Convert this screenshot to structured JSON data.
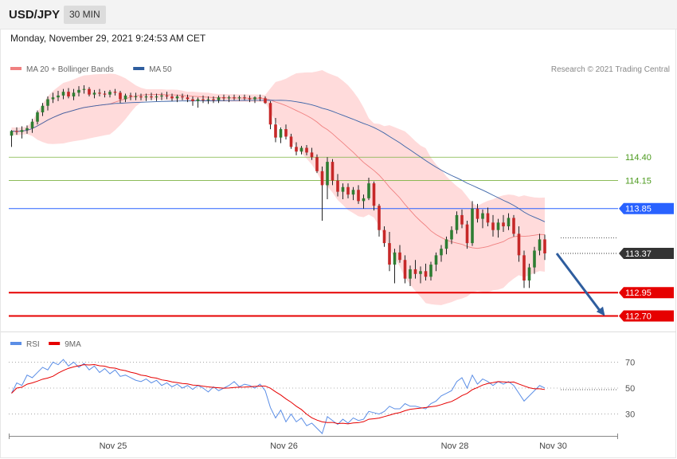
{
  "header": {
    "symbol": "USD/JPY",
    "interval": "30 MIN",
    "timestamp": "Monday, November 29, 2021 9:24:53 AM CET"
  },
  "chart_data": {
    "type": "candlestick",
    "instrument": "USD/JPY",
    "timeframe": "30 MIN",
    "attribution": "Research © 2021 Trading Central",
    "price_legend": [
      {
        "label": "MA 20 + Bollinger Bands",
        "color": "#f08080"
      },
      {
        "label": "MA 50",
        "color": "#2e5d9e"
      }
    ],
    "price_ylim": [
      112.5,
      115.4
    ],
    "x_ticks": [
      {
        "label": "Nov 25",
        "index": 19
      },
      {
        "label": "Nov 26",
        "index": 52
      },
      {
        "label": "Nov 28",
        "index": 85
      },
      {
        "label": "Nov 30",
        "index": 104
      }
    ],
    "levels": [
      {
        "price": 114.4,
        "label": "114.40",
        "style": "thin",
        "color": "#7cb342",
        "text_color": "#4c9a1e"
      },
      {
        "price": 114.15,
        "label": "114.15",
        "style": "thin",
        "color": "#7cb342",
        "text_color": "#4c9a1e"
      },
      {
        "price": 113.85,
        "label": "113.85",
        "style": "tag",
        "color": "#2962ff",
        "text_color": "#ffffff"
      },
      {
        "price": 113.37,
        "label": "113.37",
        "style": "current",
        "color": "#333333",
        "text_color": "#ffffff"
      },
      {
        "price": 112.95,
        "label": "112.95",
        "style": "tag",
        "color": "#e60000",
        "text_color": "#ffffff"
      },
      {
        "price": 112.7,
        "label": "112.70",
        "style": "tag",
        "color": "#e60000",
        "text_color": "#ffffff"
      }
    ],
    "forecast_arrow": {
      "from_index": 105,
      "from_price": 113.37,
      "to_index": 114,
      "to_price": 112.7,
      "color": "#2e5d9e"
    },
    "candles": [
      [
        114.63,
        114.69,
        114.51,
        114.68
      ],
      [
        114.68,
        114.72,
        114.64,
        114.67
      ],
      [
        114.67,
        114.73,
        114.6,
        114.69
      ],
      [
        114.69,
        114.74,
        114.65,
        114.71
      ],
      [
        114.71,
        114.81,
        114.66,
        114.78
      ],
      [
        114.78,
        114.9,
        114.75,
        114.88
      ],
      [
        114.88,
        114.98,
        114.84,
        114.95
      ],
      [
        114.95,
        115.05,
        114.9,
        115.02
      ],
      [
        115.02,
        115.09,
        114.98,
        115.04
      ],
      [
        115.04,
        115.11,
        115.0,
        115.06
      ],
      [
        115.06,
        115.13,
        115.02,
        115.1
      ],
      [
        115.1,
        115.14,
        115.03,
        115.05
      ],
      [
        115.05,
        115.13,
        115.01,
        115.09
      ],
      [
        115.09,
        115.16,
        115.05,
        115.12
      ],
      [
        115.12,
        115.17,
        115.08,
        115.13
      ],
      [
        115.13,
        115.15,
        115.05,
        115.07
      ],
      [
        115.07,
        115.12,
        115.03,
        115.09
      ],
      [
        115.09,
        115.13,
        115.05,
        115.08
      ],
      [
        115.08,
        115.11,
        115.04,
        115.07
      ],
      [
        115.07,
        115.12,
        115.04,
        115.1
      ],
      [
        115.1,
        115.13,
        115.06,
        115.09
      ],
      [
        115.09,
        115.11,
        114.98,
        115.02
      ],
      [
        115.02,
        115.08,
        114.99,
        115.06
      ],
      [
        115.06,
        115.09,
        115.01,
        115.05
      ],
      [
        115.05,
        115.09,
        115.01,
        115.05
      ],
      [
        115.05,
        115.08,
        115.01,
        115.04
      ],
      [
        115.04,
        115.08,
        115.0,
        115.05
      ],
      [
        115.05,
        115.09,
        115.01,
        115.04
      ],
      [
        115.04,
        115.08,
        115.0,
        115.05
      ],
      [
        115.05,
        115.09,
        115.01,
        115.06
      ],
      [
        115.06,
        115.1,
        115.02,
        115.05
      ],
      [
        115.05,
        115.08,
        115.0,
        115.03
      ],
      [
        115.03,
        115.07,
        114.99,
        115.05
      ],
      [
        115.05,
        115.08,
        115.01,
        115.04
      ],
      [
        115.04,
        115.07,
        114.99,
        115.02
      ],
      [
        115.02,
        115.05,
        114.95,
        115.0
      ],
      [
        115.0,
        115.04,
        114.93,
        115.02
      ],
      [
        115.02,
        115.06,
        114.98,
        115.01
      ],
      [
        115.01,
        115.05,
        114.97,
        115.02
      ],
      [
        115.02,
        115.05,
        114.98,
        115.01
      ],
      [
        115.01,
        115.06,
        114.98,
        115.04
      ],
      [
        115.04,
        115.07,
        115.0,
        115.03
      ],
      [
        115.03,
        115.06,
        114.99,
        115.04
      ],
      [
        115.04,
        115.07,
        115.01,
        115.03
      ],
      [
        115.03,
        115.06,
        115.0,
        115.04
      ],
      [
        115.04,
        115.07,
        115.01,
        115.03
      ],
      [
        115.03,
        115.06,
        114.99,
        115.02
      ],
      [
        115.02,
        115.05,
        114.98,
        115.04
      ],
      [
        115.04,
        115.07,
        115.0,
        115.03
      ],
      [
        115.03,
        115.05,
        114.97,
        114.98
      ],
      [
        114.98,
        115.0,
        114.7,
        114.75
      ],
      [
        114.75,
        114.82,
        114.56,
        114.61
      ],
      [
        114.61,
        114.72,
        114.55,
        114.7
      ],
      [
        114.7,
        114.75,
        114.59,
        114.62
      ],
      [
        114.62,
        114.65,
        114.49,
        114.51
      ],
      [
        114.51,
        114.56,
        114.42,
        114.46
      ],
      [
        114.46,
        114.52,
        114.43,
        114.5
      ],
      [
        114.5,
        114.53,
        114.42,
        114.45
      ],
      [
        114.45,
        114.5,
        114.37,
        114.4
      ],
      [
        114.4,
        114.43,
        114.23,
        114.25
      ],
      [
        114.25,
        114.3,
        113.72,
        114.1
      ],
      [
        114.1,
        114.4,
        113.95,
        114.35
      ],
      [
        114.35,
        114.38,
        114.1,
        114.15
      ],
      [
        114.15,
        114.22,
        113.98,
        114.03
      ],
      [
        114.03,
        114.12,
        113.95,
        114.08
      ],
      [
        114.08,
        114.12,
        113.96,
        114.0
      ],
      [
        114.0,
        114.08,
        113.94,
        114.05
      ],
      [
        114.05,
        114.1,
        113.9,
        113.93
      ],
      [
        113.93,
        114.0,
        113.85,
        113.96
      ],
      [
        113.96,
        114.18,
        113.94,
        114.12
      ],
      [
        114.12,
        114.14,
        113.83,
        113.88
      ],
      [
        113.88,
        113.9,
        113.55,
        113.62
      ],
      [
        113.62,
        113.66,
        113.44,
        113.48
      ],
      [
        113.48,
        113.6,
        113.18,
        113.25
      ],
      [
        113.25,
        113.42,
        113.05,
        113.38
      ],
      [
        113.38,
        113.46,
        113.27,
        113.3
      ],
      [
        113.3,
        113.35,
        113.05,
        113.1
      ],
      [
        113.1,
        113.24,
        113.02,
        113.2
      ],
      [
        113.2,
        113.3,
        113.1,
        113.15
      ],
      [
        113.15,
        113.23,
        113.05,
        113.18
      ],
      [
        113.18,
        113.26,
        113.08,
        113.12
      ],
      [
        113.12,
        113.28,
        113.08,
        113.25
      ],
      [
        113.25,
        113.38,
        113.18,
        113.35
      ],
      [
        113.35,
        113.46,
        113.28,
        113.42
      ],
      [
        113.42,
        113.55,
        113.36,
        113.52
      ],
      [
        113.52,
        113.66,
        113.47,
        113.62
      ],
      [
        113.62,
        113.82,
        113.58,
        113.78
      ],
      [
        113.78,
        113.84,
        113.64,
        113.68
      ],
      [
        113.68,
        113.72,
        113.42,
        113.48
      ],
      [
        113.48,
        113.93,
        113.45,
        113.85
      ],
      [
        113.85,
        113.9,
        113.7,
        113.74
      ],
      [
        113.74,
        113.84,
        113.64,
        113.8
      ],
      [
        113.8,
        113.86,
        113.66,
        113.7
      ],
      [
        113.7,
        113.78,
        113.55,
        113.62
      ],
      [
        113.62,
        113.74,
        113.54,
        113.7
      ],
      [
        113.7,
        113.78,
        113.6,
        113.66
      ],
      [
        113.66,
        113.8,
        113.62,
        113.75
      ],
      [
        113.75,
        113.78,
        113.55,
        113.58
      ],
      [
        113.58,
        113.66,
        113.28,
        113.35
      ],
      [
        113.35,
        113.4,
        113.0,
        113.08
      ],
      [
        113.08,
        113.26,
        113.0,
        113.22
      ],
      [
        113.22,
        113.44,
        113.15,
        113.4
      ],
      [
        113.4,
        113.58,
        113.35,
        113.52
      ],
      [
        113.52,
        113.57,
        113.3,
        113.37
      ]
    ],
    "rsi": {
      "legend": [
        {
          "label": "RSI",
          "color": "#5b8ee6"
        },
        {
          "label": "9MA",
          "color": "#e60000"
        }
      ],
      "ylim": [
        15,
        85
      ],
      "levels": [
        {
          "value": 70,
          "label": "70"
        },
        {
          "value": 50,
          "label": "50"
        },
        {
          "value": 30,
          "label": "30"
        }
      ],
      "values": [
        46,
        54,
        52,
        60,
        58,
        62,
        66,
        64,
        70,
        68,
        72,
        67,
        70,
        66,
        69,
        64,
        67,
        62,
        65,
        61,
        64,
        59,
        60,
        58,
        56,
        55,
        57,
        54,
        56,
        52,
        54,
        51,
        53,
        50,
        52,
        49,
        52,
        50,
        47,
        51,
        48,
        50,
        52,
        55,
        51,
        53,
        52,
        50,
        53,
        48,
        35,
        27,
        33,
        24,
        30,
        24,
        27,
        21,
        23,
        19,
        15,
        28,
        25,
        22,
        26,
        23,
        27,
        25,
        26,
        32,
        31,
        30,
        32,
        36,
        34,
        34,
        38,
        36,
        36,
        35,
        34,
        38,
        40,
        44,
        46,
        48,
        55,
        58,
        50,
        60,
        53,
        57,
        55,
        52,
        55,
        53,
        55,
        52,
        46,
        40,
        44,
        48,
        52,
        50
      ]
    }
  }
}
